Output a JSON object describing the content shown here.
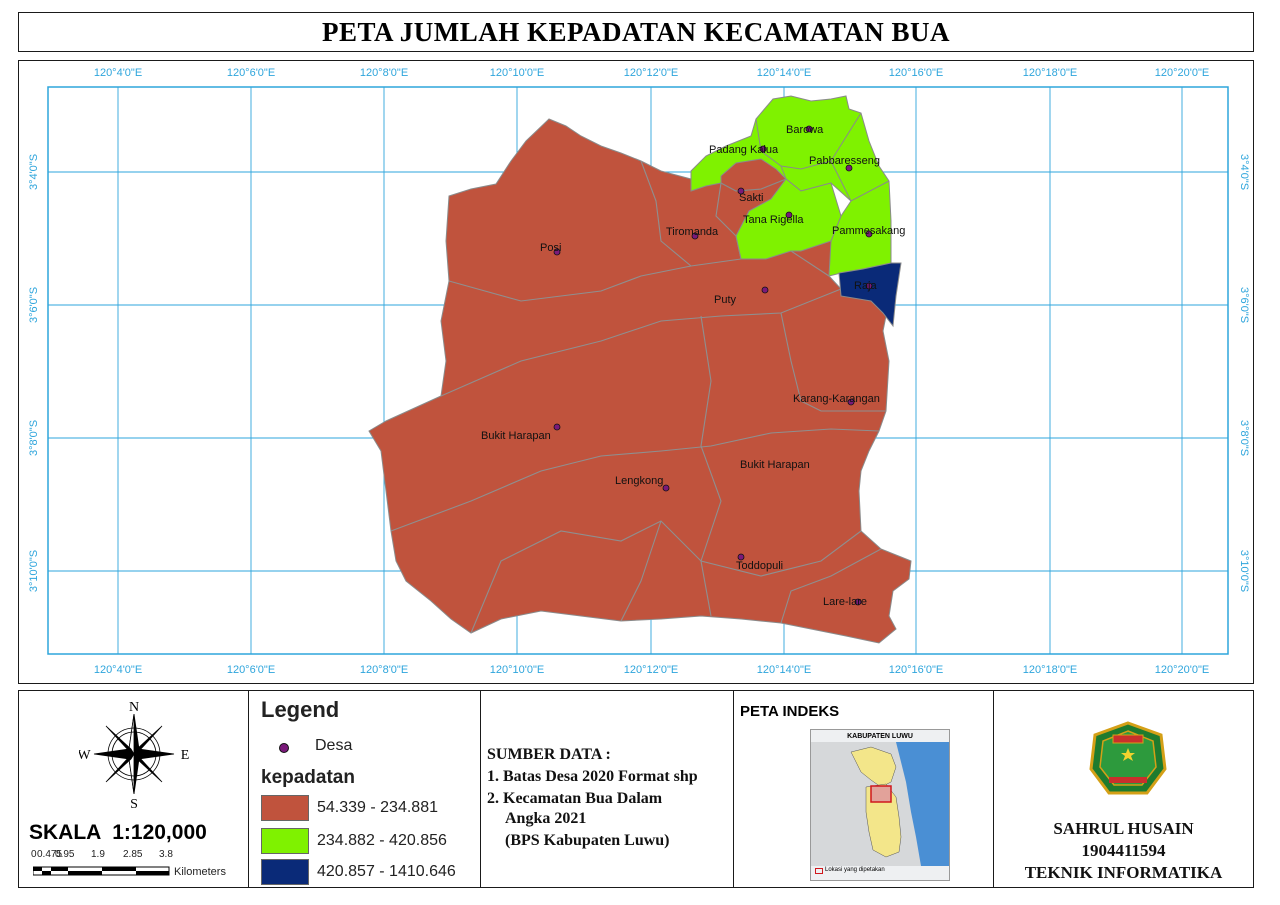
{
  "title": "PETA JUMLAH KEPADATAN KECAMATAN BUA",
  "grid": {
    "lon_labels": [
      "120°4'0\"E",
      "120°6'0\"E",
      "120°8'0\"E",
      "120°10'0\"E",
      "120°12'0\"E",
      "120°14'0\"E",
      "120°16'0\"E",
      "120°18'0\"E",
      "120°20'0\"E"
    ],
    "lat_labels": [
      "3°4'0\"S",
      "3°6'0\"S",
      "3°8'0\"S",
      "3°10'0\"S"
    ]
  },
  "villages": [
    "Barowa",
    "Padang Kalua",
    "Pabbaresseng",
    "Sakti",
    "Tana Rigella",
    "Tiromanda",
    "Pammesakang",
    "Posi",
    "Raja",
    "Puty",
    "Karang-Karangan",
    "Bukit Harapan",
    "Bukit Harapan",
    "Lengkong",
    "Toddopuli",
    "Lare-lare"
  ],
  "legend": {
    "title": "Legend",
    "point_label": "Desa",
    "class_title": "kepadatan",
    "classes": [
      {
        "label": "54.339 - 234.881",
        "color": "#c0533d"
      },
      {
        "label": "234.882 - 420.856",
        "color": "#7ff200"
      },
      {
        "label": "420.857 - 1410.646",
        "color": "#0a2a78"
      }
    ]
  },
  "compass": {
    "n": "N",
    "s": "S",
    "e": "E",
    "w": "W"
  },
  "scale": {
    "text": "SKALA  1:120,000",
    "ticks": [
      "0",
      "0.475",
      "0.95",
      "1.9",
      "2.85",
      "3.8"
    ],
    "unit": "Kilometers"
  },
  "source": {
    "heading": "SUMBER DATA :",
    "lines": [
      "1. Batas Desa 2020 Format shp",
      "2. Kecamatan Bua Dalam",
      "Angka 2021",
      "(BPS Kabupaten Luwu)"
    ]
  },
  "index_map": {
    "heading": "PETA INDEKS",
    "inset_title": "KABUPATEN LUWU",
    "inset_caption": "Lokasi yang dipetakan"
  },
  "author": {
    "name": "SAHRUL HUSAIN",
    "id": "1904411594",
    "dept": "TEKNIK INFORMATIKA"
  },
  "colors": {
    "grid": "#2ea5dc",
    "border": "#1a1a1a",
    "label": "#2ea5dc"
  }
}
